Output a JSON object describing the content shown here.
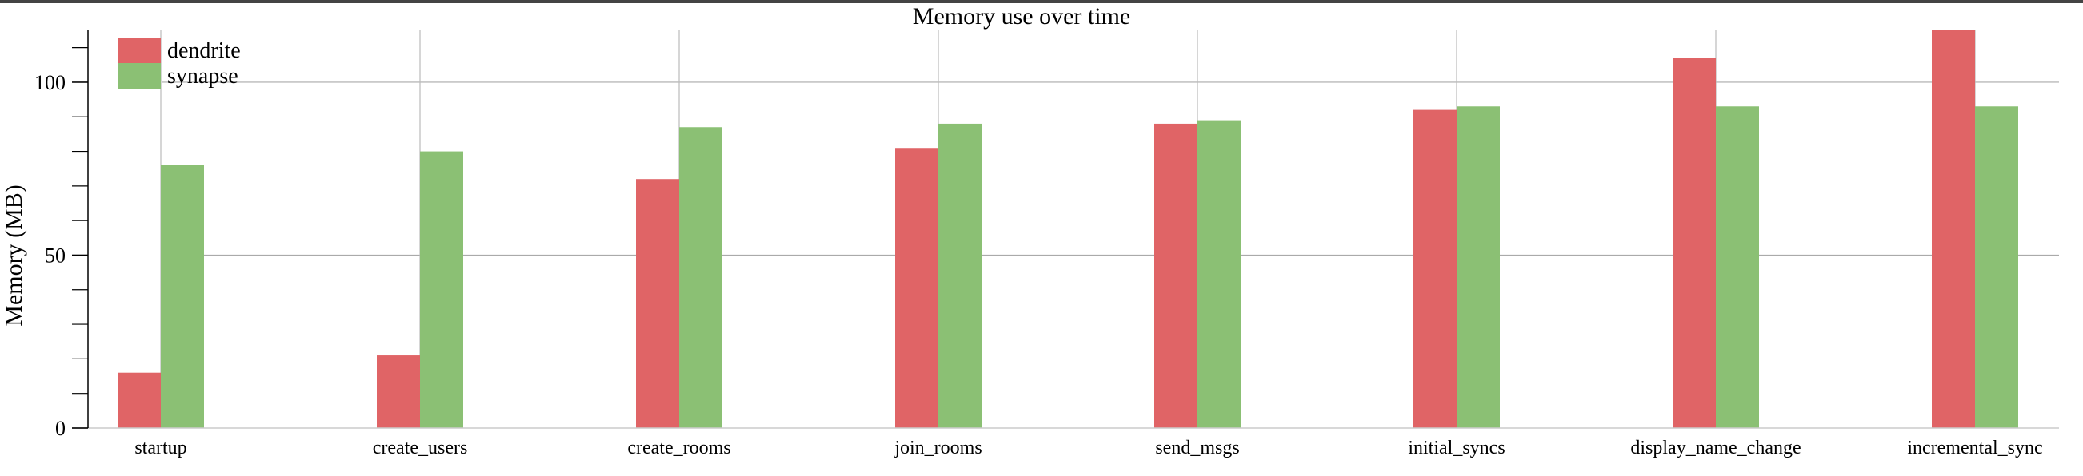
{
  "chart_data": {
    "type": "bar",
    "title": "Memory use over time",
    "xlabel": "",
    "ylabel": "Memory (MB)",
    "ylim": [
      0,
      115
    ],
    "yticks_major": [
      0,
      50,
      100
    ],
    "yticks_minor_step": 10,
    "grid": true,
    "legend_position": "top-left",
    "categories": [
      "startup",
      "create_users",
      "create_rooms",
      "join_rooms",
      "send_msgs",
      "initial_syncs",
      "display_name_change",
      "incremental_sync"
    ],
    "series": [
      {
        "name": "dendrite",
        "color": "#e06466",
        "values": [
          16,
          21,
          72,
          81,
          88,
          92,
          107,
          115
        ]
      },
      {
        "name": "synapse",
        "color": "#8bc074",
        "values": [
          76,
          80,
          87,
          88,
          89,
          93,
          93,
          93
        ]
      }
    ]
  }
}
